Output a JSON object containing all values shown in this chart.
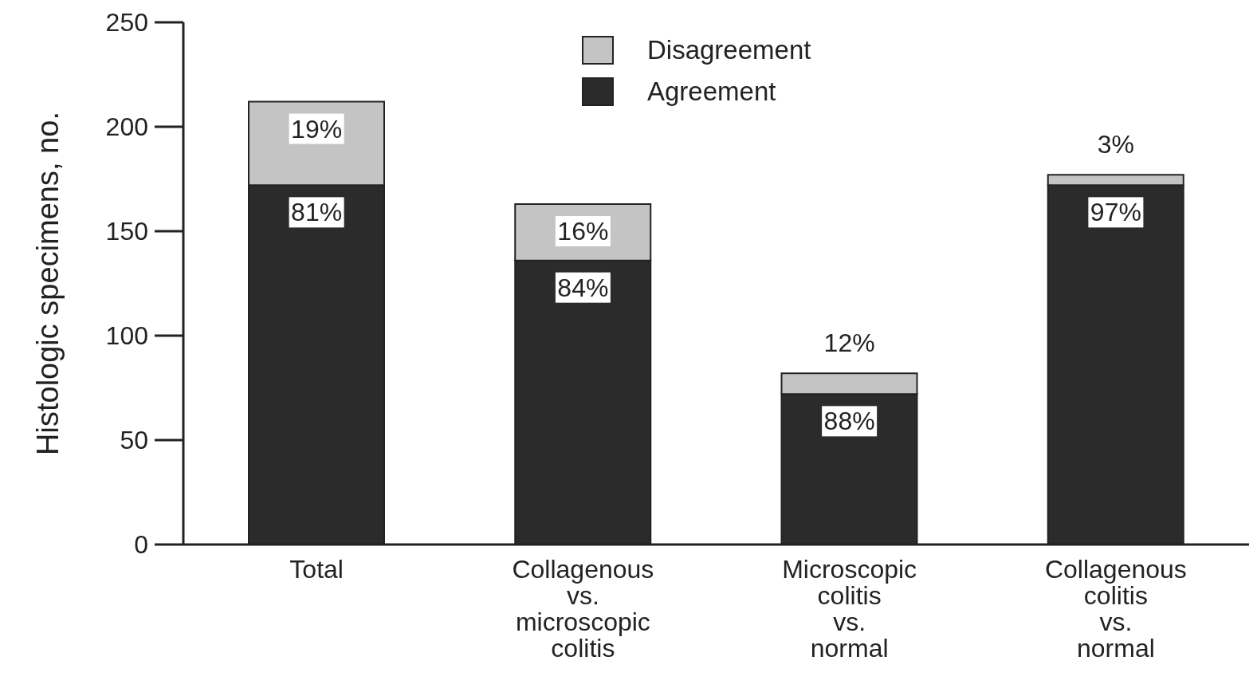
{
  "chart_data": {
    "type": "bar",
    "stacked": true,
    "ylabel": "Histologic specimens, no.",
    "categories": [
      "Total",
      "Collagenous vs. microscopic colitis",
      "Microscopic colitis vs. normal",
      "Collagenous colitis vs. normal"
    ],
    "series": [
      {
        "name": "Agreement",
        "color": "#2b2b2b",
        "values": [
          172,
          136,
          72,
          172
        ]
      },
      {
        "name": "Disagreement",
        "color": "#c4c4c4",
        "values": [
          40,
          27,
          10,
          5
        ]
      }
    ],
    "annotations": [
      {
        "text": "19%",
        "x": "Total",
        "y": 212
      },
      {
        "text": "81%",
        "x": "Total",
        "y": 172
      },
      {
        "text": "16%",
        "x": "Collagenous vs. microscopic colitis",
        "y": 163
      },
      {
        "text": "84%",
        "x": "Collagenous vs. microscopic colitis",
        "y": 136
      },
      {
        "text": "12%",
        "x": "Microscopic colitis vs. normal",
        "y": 82
      },
      {
        "text": "88%",
        "x": "Microscopic colitis vs. normal",
        "y": 72
      },
      {
        "text": "3%",
        "x": "Collagenous colitis vs. normal",
        "y": 177
      },
      {
        "text": "97%",
        "x": "Collagenous colitis vs. normal",
        "y": 172
      }
    ],
    "ylim": [
      0,
      250
    ],
    "yticks": [
      0,
      50,
      100,
      150,
      200,
      250
    ],
    "grid": false,
    "legend": "top"
  }
}
